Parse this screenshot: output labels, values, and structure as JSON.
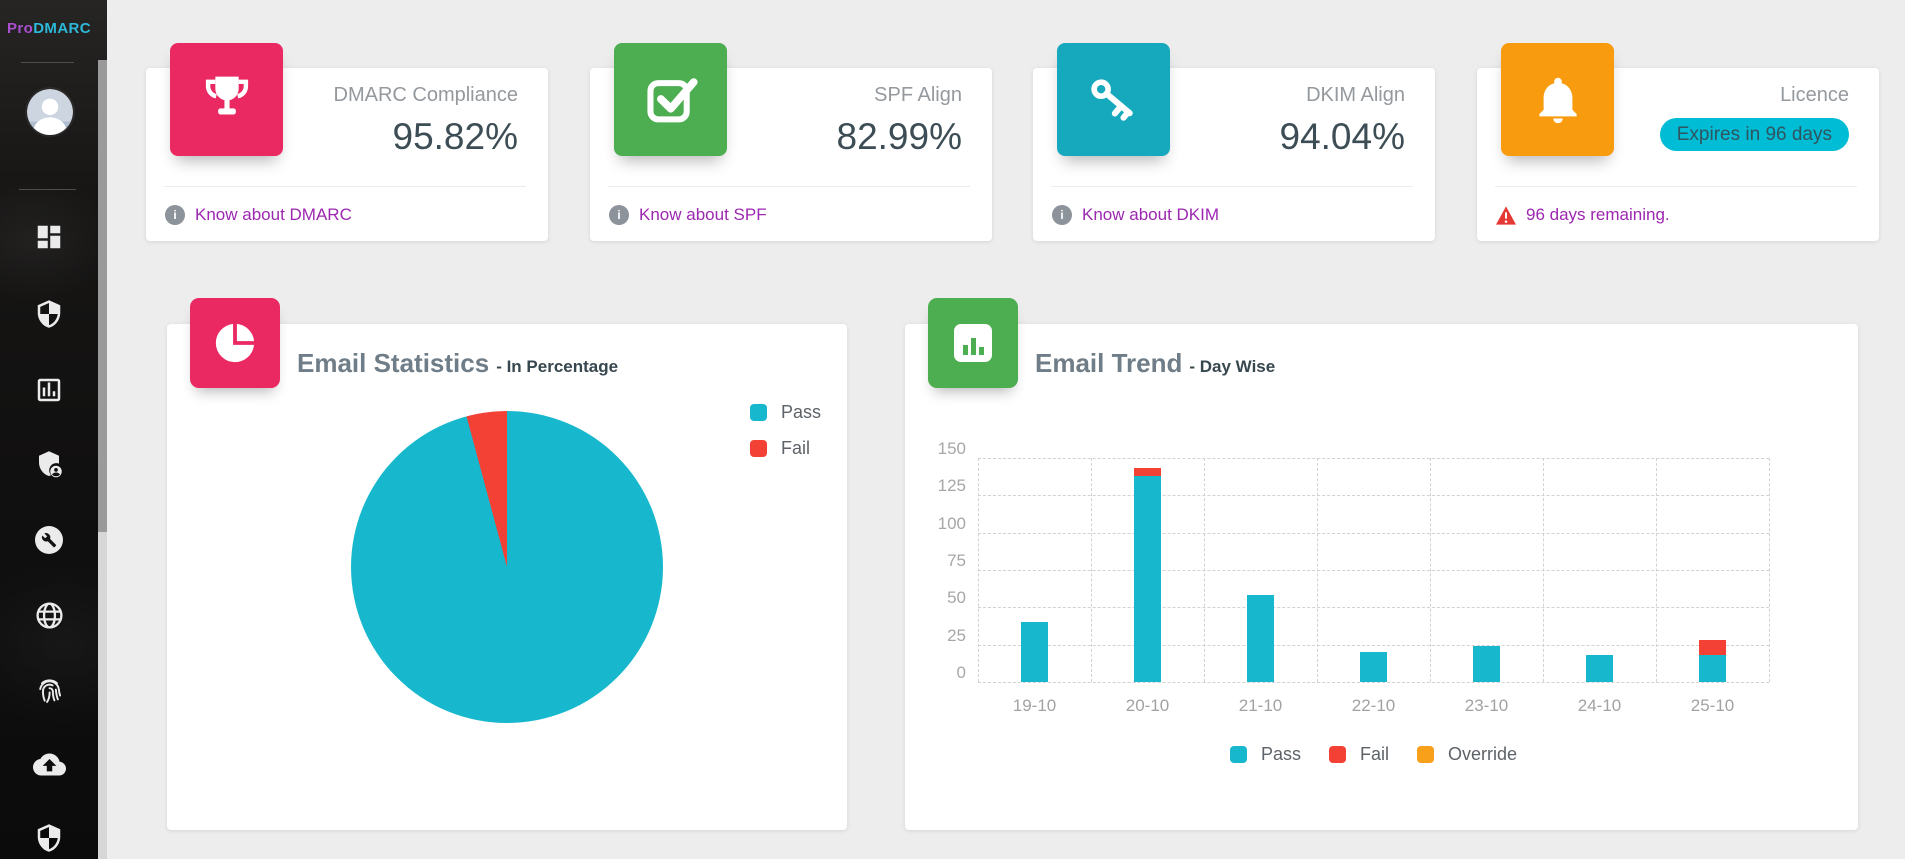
{
  "app": {
    "name_prefix": "Pro",
    "name_suffix": "DMARC"
  },
  "colors": {
    "page_bg": "#ededed",
    "link": "#9c27b0",
    "label_text": "#94999e",
    "value_text": "#3d4d55",
    "pass": "#17b8cd",
    "fail": "#f34135",
    "override": "#f9a01b",
    "badge_bg": "#00bcd4"
  },
  "sidebar": {
    "icons": [
      "grid-dashboard",
      "half-shield",
      "bar-chart-box",
      "shield-user",
      "wrench-circle",
      "globe",
      "fingerprint",
      "cloud-upload",
      "half-shield-bottom"
    ]
  },
  "stat_cards": [
    {
      "label": "DMARC Compliance",
      "value": "95.82%",
      "link_label": "Know about DMARC",
      "tile_color": "#ea2963",
      "icon": "trophy"
    },
    {
      "label": "SPF Align",
      "value": "82.99%",
      "link_label": "Know about SPF",
      "tile_color": "#4cae50",
      "icon": "check-square"
    },
    {
      "label": "DKIM Align",
      "value": "94.04%",
      "link_label": "Know about DKIM",
      "tile_color": "#16a9be",
      "icon": "key"
    },
    {
      "label": "Licence",
      "badge_label": "Expires in 96 days",
      "badge_color": "#00bcd4",
      "warning_label": "96 days remaining.",
      "tile_color": "#f99b0f",
      "icon": "bell"
    }
  ],
  "chart_data": [
    {
      "type": "pie",
      "title": "Email Statistics",
      "subtitle": "- In Percentage",
      "tile_color": "#ea2963",
      "labels": [
        "Pass",
        "Fail"
      ],
      "values": [
        95.82,
        4.18
      ],
      "colors": [
        "#17b8cd",
        "#f34135"
      ],
      "legend_position": "right"
    },
    {
      "type": "bar",
      "title": "Email Trend",
      "subtitle": "- Day Wise",
      "tile_color": "#4cae50",
      "stacked": true,
      "categories": [
        "19-10",
        "20-10",
        "21-10",
        "22-10",
        "23-10",
        "24-10",
        "25-10"
      ],
      "series": [
        {
          "name": "Pass",
          "color": "#17b8cd",
          "values": [
            40,
            138,
            58,
            20,
            24,
            18,
            18
          ]
        },
        {
          "name": "Fail",
          "color": "#f34135",
          "values": [
            0,
            5,
            0,
            0,
            0,
            0,
            10
          ]
        },
        {
          "name": "Override",
          "color": "#f9a01b",
          "values": [
            0,
            0,
            0,
            0,
            0,
            0,
            0
          ]
        }
      ],
      "ylim": [
        0,
        150
      ],
      "ytick_step": 25,
      "grid": "dashed",
      "legend_position": "bottom"
    }
  ]
}
